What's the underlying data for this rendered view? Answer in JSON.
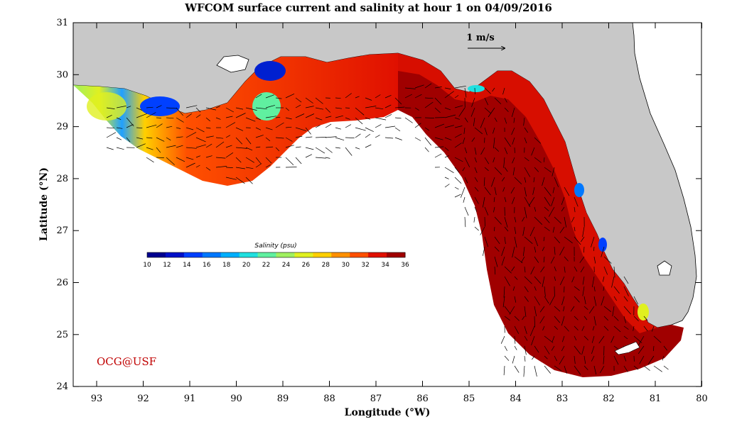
{
  "title": "WFCOM surface current and salinity at hour 1 on 04/09/2016",
  "x_axis": {
    "label": "Longitude (°W)",
    "ticks": [
      "93",
      "92",
      "91",
      "90",
      "89",
      "88",
      "87",
      "86",
      "85",
      "84",
      "83",
      "82",
      "81",
      "80"
    ]
  },
  "y_axis": {
    "label": "Latitude (°N)",
    "ticks": [
      "31",
      "30",
      "29",
      "28",
      "27",
      "26",
      "25",
      "24"
    ]
  },
  "colorbar": {
    "title": "Salinity (psu)",
    "min": 10,
    "max": 36,
    "tick_labels": [
      "10",
      "12",
      "14",
      "16",
      "18",
      "20",
      "22",
      "24",
      "26",
      "28",
      "30",
      "32",
      "34",
      "36"
    ],
    "colors": [
      "#00008f",
      "#0010c8",
      "#0040ff",
      "#0078ff",
      "#00b0ff",
      "#20e0e0",
      "#60f0a0",
      "#a0f060",
      "#e0f020",
      "#ffd000",
      "#ff9000",
      "#ff5000",
      "#e01000",
      "#a00000"
    ]
  },
  "scale_arrow": {
    "label": "1 m/s"
  },
  "credit": "OCG@USF",
  "colors": {
    "land": "#c8c8c8",
    "ocean_high_salinity": "#a00000",
    "shelf_salinity": "#e02000",
    "credit_text": "#c00000"
  }
}
